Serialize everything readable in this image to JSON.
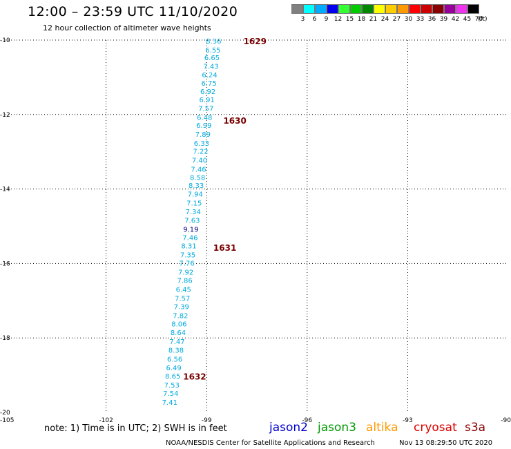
{
  "header": {
    "title": "12:00 – 23:59 UTC 11/10/2020",
    "subtitle": "12 hour collection of altimeter wave heights"
  },
  "colorbar": {
    "unit": "(ft)",
    "bins": [
      {
        "label": "3",
        "color": "#808080"
      },
      {
        "label": "6",
        "color": "#00ffff"
      },
      {
        "label": "9",
        "color": "#00aaff"
      },
      {
        "label": "12",
        "color": "#0000ee"
      },
      {
        "label": "15",
        "color": "#33ff33"
      },
      {
        "label": "18",
        "color": "#00cc00"
      },
      {
        "label": "21",
        "color": "#008800"
      },
      {
        "label": "24",
        "color": "#ffff00"
      },
      {
        "label": "27",
        "color": "#ffcc00"
      },
      {
        "label": "30",
        "color": "#ff9900"
      },
      {
        "label": "33",
        "color": "#ff0000"
      },
      {
        "label": "36",
        "color": "#cc0000"
      },
      {
        "label": "39",
        "color": "#880000"
      },
      {
        "label": "42",
        "color": "#990099"
      },
      {
        "label": "45",
        "color": "#ee33ee"
      },
      {
        "label": "70",
        "color": "#000000"
      }
    ]
  },
  "map": {
    "lon_range": [
      -105,
      -90
    ],
    "lat_range": [
      -20,
      -10
    ],
    "lon_ticks": [
      -105,
      -102,
      -99,
      -96,
      -93,
      -90
    ],
    "lat_ticks": [
      -10,
      -12,
      -14,
      -16,
      -18,
      -20
    ],
    "grid_style": "dotted",
    "height_color": "#00aadd",
    "high_color": "#000080",
    "time_color": "#7a0000",
    "track": [
      {
        "lon": -98.79,
        "lat": -10.02,
        "swh": "8.36"
      },
      {
        "lon": -98.81,
        "lat": -10.26,
        "swh": "6.55"
      },
      {
        "lon": -98.84,
        "lat": -10.46,
        "swh": "6.65"
      },
      {
        "lon": -98.87,
        "lat": -10.7,
        "swh": "7.43"
      },
      {
        "lon": -98.91,
        "lat": -10.93,
        "swh": "6.24"
      },
      {
        "lon": -98.93,
        "lat": -11.15,
        "swh": "6.75"
      },
      {
        "lon": -98.96,
        "lat": -11.37,
        "swh": "6.92"
      },
      {
        "lon": -98.99,
        "lat": -11.6,
        "swh": "6.91"
      },
      {
        "lon": -99.02,
        "lat": -11.83,
        "swh": "7.57"
      },
      {
        "lon": -99.06,
        "lat": -12.07,
        "swh": "6.48"
      },
      {
        "lon": -99.08,
        "lat": -12.28,
        "swh": "6.99"
      },
      {
        "lon": -99.11,
        "lat": -12.52,
        "swh": "7.89"
      },
      {
        "lon": -99.15,
        "lat": -12.76,
        "swh": "6.33"
      },
      {
        "lon": -99.18,
        "lat": -12.98,
        "swh": "7.22"
      },
      {
        "lon": -99.21,
        "lat": -13.22,
        "swh": "7.40"
      },
      {
        "lon": -99.24,
        "lat": -13.46,
        "swh": "7.46"
      },
      {
        "lon": -99.27,
        "lat": -13.68,
        "swh": "8.58"
      },
      {
        "lon": -99.31,
        "lat": -13.9,
        "swh": "8.33"
      },
      {
        "lon": -99.34,
        "lat": -14.13,
        "swh": "7.94"
      },
      {
        "lon": -99.37,
        "lat": -14.37,
        "swh": "7.15"
      },
      {
        "lon": -99.4,
        "lat": -14.6,
        "swh": "7.34"
      },
      {
        "lon": -99.43,
        "lat": -14.83,
        "swh": "7.63"
      },
      {
        "lon": -99.47,
        "lat": -15.07,
        "swh": "9.19",
        "high": true
      },
      {
        "lon": -99.49,
        "lat": -15.3,
        "swh": "7.46"
      },
      {
        "lon": -99.53,
        "lat": -15.52,
        "swh": "8.31"
      },
      {
        "lon": -99.56,
        "lat": -15.76,
        "swh": "7.35"
      },
      {
        "lon": -99.59,
        "lat": -15.98,
        "swh": "7.76"
      },
      {
        "lon": -99.62,
        "lat": -16.22,
        "swh": "7.92"
      },
      {
        "lon": -99.65,
        "lat": -16.45,
        "swh": "7.86"
      },
      {
        "lon": -99.69,
        "lat": -16.69,
        "swh": "6.45"
      },
      {
        "lon": -99.72,
        "lat": -16.93,
        "swh": "7.57"
      },
      {
        "lon": -99.75,
        "lat": -17.15,
        "swh": "7.39"
      },
      {
        "lon": -99.78,
        "lat": -17.39,
        "swh": "7.82"
      },
      {
        "lon": -99.82,
        "lat": -17.62,
        "swh": "8.06"
      },
      {
        "lon": -99.85,
        "lat": -17.85,
        "swh": "8.64"
      },
      {
        "lon": -99.88,
        "lat": -18.09,
        "swh": "7.47"
      },
      {
        "lon": -99.91,
        "lat": -18.32,
        "swh": "8.38"
      },
      {
        "lon": -99.95,
        "lat": -18.56,
        "swh": "6.56"
      },
      {
        "lon": -99.98,
        "lat": -18.79,
        "swh": "6.49"
      },
      {
        "lon": -100.01,
        "lat": -19.02,
        "swh": "8.65"
      },
      {
        "lon": -100.04,
        "lat": -19.26,
        "swh": "7.53"
      },
      {
        "lon": -100.07,
        "lat": -19.48,
        "swh": "7.54"
      },
      {
        "lon": -100.1,
        "lat": -19.72,
        "swh": "7.41"
      }
    ],
    "time_labels": [
      {
        "lon": -97.9,
        "lat": -10.02,
        "text": "1629"
      },
      {
        "lon": -98.5,
        "lat": -12.15,
        "text": "1630"
      },
      {
        "lon": -98.8,
        "lat": -15.57,
        "text": "1631"
      },
      {
        "lon": -99.7,
        "lat": -19.03,
        "text": "1632"
      }
    ]
  },
  "footer": {
    "note": "note:  1) Time is in UTC;  2) SWH is in feet",
    "legend": [
      {
        "label": "jason2",
        "color": "#0000cc"
      },
      {
        "label": "jason3",
        "color": "#009900"
      },
      {
        "label": "altika",
        "color": "#ff9900"
      },
      {
        "label": "cryosat",
        "color": "#dd0000"
      },
      {
        "label": "s3a",
        "color": "#880000"
      }
    ],
    "credit": "NOAA/NESDIS Center for Satellite Applications and Research",
    "timestamp": "Nov 13 08:29:50 UTC 2020"
  }
}
